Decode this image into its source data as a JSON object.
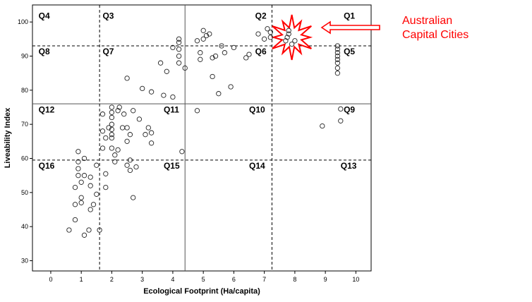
{
  "chart_data": {
    "type": "scatter",
    "xlabel": "Ecological Footprint (Ha/capita)",
    "ylabel": "Liveability Index",
    "xlim": [
      -0.6,
      10.5
    ],
    "ylim": [
      27,
      105
    ],
    "x_ticks": [
      "0",
      "1",
      "2",
      "3",
      "4",
      "5",
      "6",
      "7",
      "8",
      "9",
      "10"
    ],
    "y_ticks": [
      "30",
      "40",
      "50",
      "60",
      "70",
      "80",
      "90",
      "100"
    ],
    "y_tick_values": [
      30,
      40,
      50,
      60,
      70,
      80,
      90,
      100
    ],
    "grid": false,
    "divider_solid": {
      "x": 4.4,
      "y": 76
    },
    "divider_dashed": {
      "x": [
        1.6,
        7.25
      ],
      "y": [
        93,
        59.5
      ]
    },
    "quadrants": [
      {
        "label": "Q4",
        "x": -0.4,
        "y": 101
      },
      {
        "label": "Q3",
        "x": 1.7,
        "y": 101
      },
      {
        "label": "Q2",
        "x": 6.7,
        "y": 101
      },
      {
        "label": "Q1",
        "x": 9.6,
        "y": 101
      },
      {
        "label": "Q8",
        "x": -0.4,
        "y": 90.5
      },
      {
        "label": "Q7",
        "x": 1.7,
        "y": 90.5
      },
      {
        "label": "Q6",
        "x": 6.7,
        "y": 90.5
      },
      {
        "label": "Q5",
        "x": 9.6,
        "y": 90.5
      },
      {
        "label": "Q12",
        "x": -0.4,
        "y": 73.5
      },
      {
        "label": "Q11",
        "x": 3.7,
        "y": 73.5
      },
      {
        "label": "Q10",
        "x": 6.5,
        "y": 73.5
      },
      {
        "label": "Q9",
        "x": 9.6,
        "y": 73.5
      },
      {
        "label": "Q16",
        "x": -0.4,
        "y": 57
      },
      {
        "label": "Q15",
        "x": 3.7,
        "y": 57
      },
      {
        "label": "Q14",
        "x": 6.5,
        "y": 57
      },
      {
        "label": "Q13",
        "x": 9.5,
        "y": 57
      }
    ],
    "annotation": {
      "lines": [
        "Australian",
        "Capital Cities"
      ],
      "color": "#ff0000",
      "target": {
        "x": 7.9,
        "y": 95.5
      }
    },
    "points": [
      [
        0.6,
        39
      ],
      [
        0.8,
        42
      ],
      [
        0.8,
        46.5
      ],
      [
        0.8,
        51.5
      ],
      [
        0.9,
        55
      ],
      [
        0.9,
        57
      ],
      [
        0.9,
        59
      ],
      [
        0.9,
        62
      ],
      [
        1.0,
        47
      ],
      [
        1.0,
        48.5
      ],
      [
        1.0,
        53
      ],
      [
        1.1,
        37.5
      ],
      [
        1.1,
        55
      ],
      [
        1.1,
        60
      ],
      [
        1.25,
        39
      ],
      [
        1.3,
        45
      ],
      [
        1.3,
        52
      ],
      [
        1.3,
        54.5
      ],
      [
        1.4,
        46.5
      ],
      [
        1.5,
        49.5
      ],
      [
        1.5,
        58
      ],
      [
        1.6,
        39
      ],
      [
        1.7,
        73
      ],
      [
        1.7,
        68
      ],
      [
        1.7,
        63
      ],
      [
        1.8,
        66
      ],
      [
        1.8,
        55.5
      ],
      [
        1.8,
        51.5
      ],
      [
        1.9,
        69
      ],
      [
        2.0,
        75
      ],
      [
        2.0,
        73.5
      ],
      [
        2.0,
        72
      ],
      [
        2.0,
        70
      ],
      [
        2.0,
        68.5
      ],
      [
        2.0,
        67
      ],
      [
        2.0,
        66
      ],
      [
        2.0,
        63
      ],
      [
        2.1,
        61
      ],
      [
        2.1,
        59
      ],
      [
        2.2,
        62.5
      ],
      [
        2.2,
        74
      ],
      [
        2.25,
        75
      ],
      [
        2.35,
        69
      ],
      [
        2.4,
        73
      ],
      [
        2.5,
        69
      ],
      [
        2.5,
        65
      ],
      [
        2.5,
        58
      ],
      [
        2.6,
        56.5
      ],
      [
        2.6,
        59.5
      ],
      [
        2.6,
        67
      ],
      [
        2.7,
        74
      ],
      [
        2.7,
        48.5
      ],
      [
        2.8,
        57.5
      ],
      [
        2.9,
        71.5
      ],
      [
        3.1,
        67
      ],
      [
        3.2,
        69
      ],
      [
        3.3,
        64.5
      ],
      [
        3.3,
        67.5
      ],
      [
        2.5,
        83.5
      ],
      [
        3.0,
        80.5
      ],
      [
        3.3,
        79.5
      ],
      [
        3.6,
        88
      ],
      [
        3.8,
        85.5
      ],
      [
        3.7,
        78.5
      ],
      [
        4.0,
        78
      ],
      [
        4.0,
        92.5
      ],
      [
        4.2,
        95
      ],
      [
        4.2,
        94
      ],
      [
        4.2,
        92
      ],
      [
        4.2,
        90
      ],
      [
        4.2,
        88
      ],
      [
        4.4,
        86.5
      ],
      [
        4.3,
        62
      ],
      [
        4.8,
        74
      ],
      [
        4.8,
        94.5
      ],
      [
        4.9,
        89
      ],
      [
        4.9,
        91
      ],
      [
        5.0,
        95
      ],
      [
        5.0,
        97.5
      ],
      [
        5.1,
        96
      ],
      [
        5.2,
        96.5
      ],
      [
        5.3,
        84
      ],
      [
        5.3,
        89.5
      ],
      [
        5.4,
        90
      ],
      [
        5.5,
        79
      ],
      [
        5.6,
        93
      ],
      [
        5.7,
        91
      ],
      [
        5.9,
        81
      ],
      [
        6.0,
        92.5
      ],
      [
        6.4,
        89.5
      ],
      [
        6.5,
        90.5
      ],
      [
        6.8,
        96.5
      ],
      [
        7.0,
        95
      ],
      [
        7.1,
        98
      ],
      [
        7.2,
        97
      ],
      [
        7.2,
        95.5
      ],
      [
        9.4,
        93
      ],
      [
        9.4,
        92
      ],
      [
        9.4,
        91
      ],
      [
        9.4,
        90
      ],
      [
        9.4,
        89
      ],
      [
        9.4,
        88
      ],
      [
        9.4,
        86.5
      ],
      [
        9.4,
        85
      ],
      [
        8.9,
        69.5
      ],
      [
        9.5,
        71
      ],
      [
        9.5,
        74.5
      ],
      [
        7.7,
        94.5
      ],
      [
        7.8,
        97.5
      ],
      [
        7.8,
        96.5
      ],
      [
        7.75,
        95.5
      ],
      [
        7.9,
        93.5
      ],
      [
        8.0,
        94.5
      ]
    ]
  }
}
